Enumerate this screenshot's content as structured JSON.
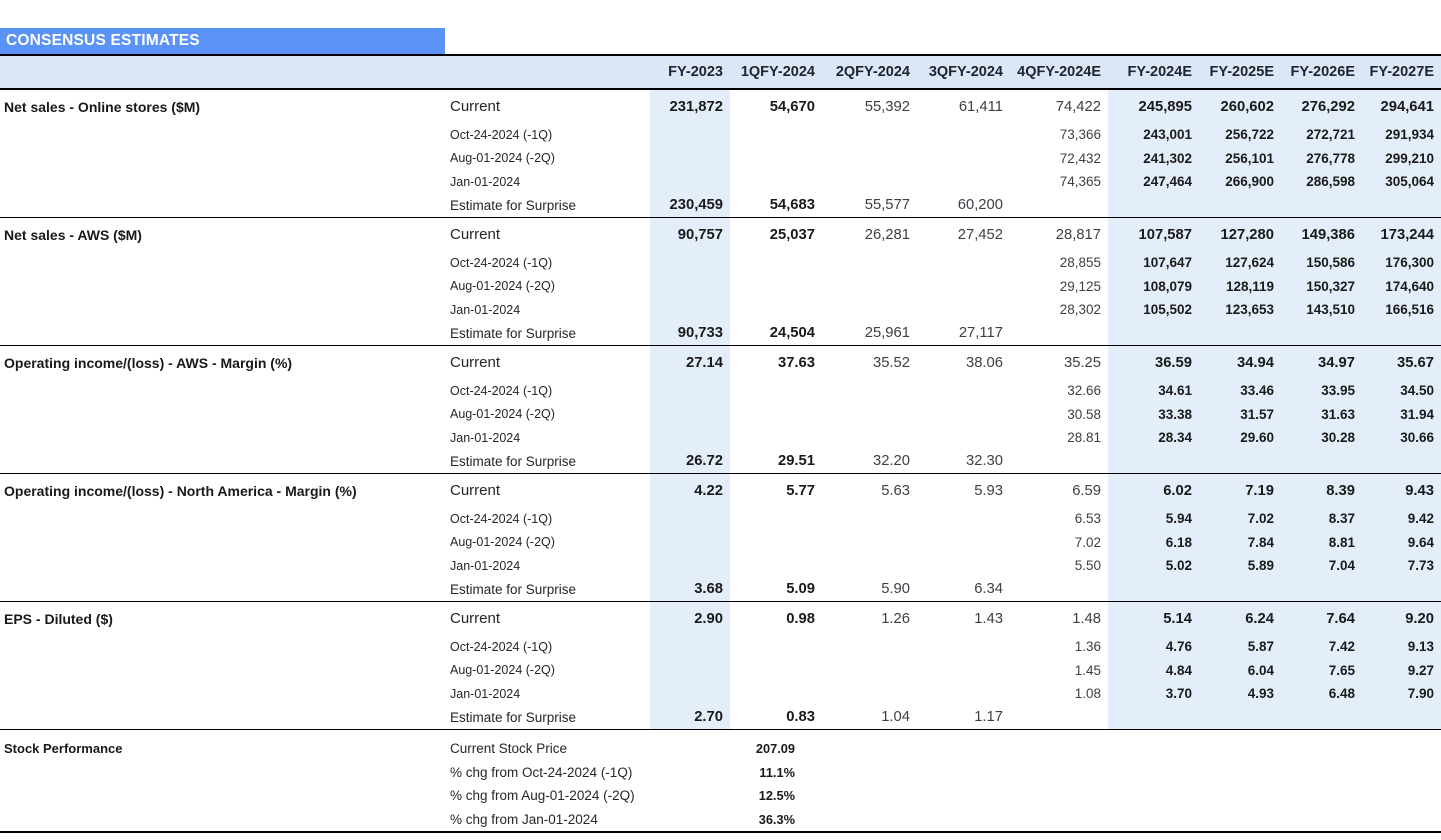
{
  "title": "CONSENSUS ESTIMATES",
  "columns": [
    "FY-2023",
    "1QFY-2024",
    "2QFY-2024",
    "3QFY-2024",
    "4QFY-2024E",
    "FY-2024E",
    "FY-2025E",
    "FY-2026E",
    "FY-2027E"
  ],
  "colors": {
    "banner_blue": "#5b92f5",
    "header_fill": "#dbe7f6",
    "column_band_fill": "#e4eefb",
    "rule_black": "#000000"
  },
  "sections": [
    {
      "label": "Net sales - Online stores ($M)",
      "rows": [
        {
          "label": "Current",
          "values": [
            "231,872",
            "54,670",
            "55,392",
            "61,411",
            "74,422",
            "245,895",
            "260,602",
            "276,292",
            "294,641"
          ]
        },
        {
          "label": "Oct-24-2024 (-1Q)",
          "values": [
            "",
            "",
            "",
            "",
            "73,366",
            "243,001",
            "256,722",
            "272,721",
            "291,934"
          ]
        },
        {
          "label": "Aug-01-2024 (-2Q)",
          "values": [
            "",
            "",
            "",
            "",
            "72,432",
            "241,302",
            "256,101",
            "276,778",
            "299,210"
          ]
        },
        {
          "label": "Jan-01-2024",
          "values": [
            "",
            "",
            "",
            "",
            "74,365",
            "247,464",
            "266,900",
            "286,598",
            "305,064"
          ]
        },
        {
          "label": "Estimate for Surprise",
          "values": [
            "230,459",
            "54,683",
            "55,577",
            "60,200",
            "",
            "",
            "",
            "",
            ""
          ]
        }
      ]
    },
    {
      "label": "Net sales - AWS ($M)",
      "rows": [
        {
          "label": "Current",
          "values": [
            "90,757",
            "25,037",
            "26,281",
            "27,452",
            "28,817",
            "107,587",
            "127,280",
            "149,386",
            "173,244"
          ]
        },
        {
          "label": "Oct-24-2024 (-1Q)",
          "values": [
            "",
            "",
            "",
            "",
            "28,855",
            "107,647",
            "127,624",
            "150,586",
            "176,300"
          ]
        },
        {
          "label": "Aug-01-2024 (-2Q)",
          "values": [
            "",
            "",
            "",
            "",
            "29,125",
            "108,079",
            "128,119",
            "150,327",
            "174,640"
          ]
        },
        {
          "label": "Jan-01-2024",
          "values": [
            "",
            "",
            "",
            "",
            "28,302",
            "105,502",
            "123,653",
            "143,510",
            "166,516"
          ]
        },
        {
          "label": "Estimate for Surprise",
          "values": [
            "90,733",
            "24,504",
            "25,961",
            "27,117",
            "",
            "",
            "",
            "",
            ""
          ]
        }
      ]
    },
    {
      "label": "Operating income/(loss) - AWS - Margin (%)",
      "rows": [
        {
          "label": "Current",
          "values": [
            "27.14",
            "37.63",
            "35.52",
            "38.06",
            "35.25",
            "36.59",
            "34.94",
            "34.97",
            "35.67"
          ]
        },
        {
          "label": "Oct-24-2024 (-1Q)",
          "values": [
            "",
            "",
            "",
            "",
            "32.66",
            "34.61",
            "33.46",
            "33.95",
            "34.50"
          ]
        },
        {
          "label": "Aug-01-2024 (-2Q)",
          "values": [
            "",
            "",
            "",
            "",
            "30.58",
            "33.38",
            "31.57",
            "31.63",
            "31.94"
          ]
        },
        {
          "label": "Jan-01-2024",
          "values": [
            "",
            "",
            "",
            "",
            "28.81",
            "28.34",
            "29.60",
            "30.28",
            "30.66"
          ]
        },
        {
          "label": "Estimate for Surprise",
          "values": [
            "26.72",
            "29.51",
            "32.20",
            "32.30",
            "",
            "",
            "",
            "",
            ""
          ]
        }
      ]
    },
    {
      "label": "Operating income/(loss) - North America - Margin (%)",
      "rows": [
        {
          "label": "Current",
          "values": [
            "4.22",
            "5.77",
            "5.63",
            "5.93",
            "6.59",
            "6.02",
            "7.19",
            "8.39",
            "9.43"
          ]
        },
        {
          "label": "Oct-24-2024 (-1Q)",
          "values": [
            "",
            "",
            "",
            "",
            "6.53",
            "5.94",
            "7.02",
            "8.37",
            "9.42"
          ]
        },
        {
          "label": "Aug-01-2024 (-2Q)",
          "values": [
            "",
            "",
            "",
            "",
            "7.02",
            "6.18",
            "7.84",
            "8.81",
            "9.64"
          ]
        },
        {
          "label": "Jan-01-2024",
          "values": [
            "",
            "",
            "",
            "",
            "5.50",
            "5.02",
            "5.89",
            "7.04",
            "7.73"
          ]
        },
        {
          "label": "Estimate for Surprise",
          "values": [
            "3.68",
            "5.09",
            "5.90",
            "6.34",
            "",
            "",
            "",
            "",
            ""
          ]
        }
      ]
    },
    {
      "label": "EPS - Diluted ($)",
      "rows": [
        {
          "label": "Current",
          "values": [
            "2.90",
            "0.98",
            "1.26",
            "1.43",
            "1.48",
            "5.14",
            "6.24",
            "7.64",
            "9.20"
          ]
        },
        {
          "label": "Oct-24-2024 (-1Q)",
          "values": [
            "",
            "",
            "",
            "",
            "1.36",
            "4.76",
            "5.87",
            "7.42",
            "9.13"
          ]
        },
        {
          "label": "Aug-01-2024 (-2Q)",
          "values": [
            "",
            "",
            "",
            "",
            "1.45",
            "4.84",
            "6.04",
            "7.65",
            "9.27"
          ]
        },
        {
          "label": "Jan-01-2024",
          "values": [
            "",
            "",
            "",
            "",
            "1.08",
            "3.70",
            "4.93",
            "6.48",
            "7.90"
          ]
        },
        {
          "label": "Estimate for Surprise",
          "values": [
            "2.70",
            "0.83",
            "1.04",
            "1.17",
            "",
            "",
            "",
            "",
            ""
          ]
        }
      ]
    }
  ],
  "stock_performance": {
    "label": "Stock Performance",
    "rows": [
      {
        "label": "Current Stock Price",
        "value": "207.09"
      },
      {
        "label": "% chg from Oct-24-2024 (-1Q)",
        "value": "11.1%"
      },
      {
        "label": "% chg from Aug-01-2024 (-2Q)",
        "value": "12.5%"
      },
      {
        "label": "% chg from Jan-01-2024",
        "value": "36.3%"
      }
    ]
  }
}
